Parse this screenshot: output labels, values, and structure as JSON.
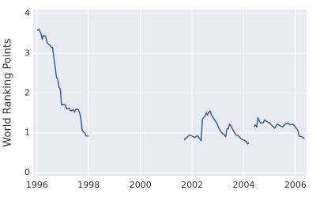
{
  "chart_data": {
    "type": "line",
    "ylabel": "World Ranking Points",
    "x": [
      1996.0,
      1996.08,
      1996.15,
      1996.2,
      1996.25,
      1996.33,
      1996.4,
      1996.5,
      1996.55,
      1996.6,
      1996.65,
      1996.7,
      1996.75,
      1996.8,
      1996.85,
      1996.9,
      1996.95,
      1997.0,
      1997.1,
      1997.15,
      1997.25,
      1997.3,
      1997.4,
      1997.45,
      1997.5,
      1997.6,
      1997.65,
      1997.7,
      1997.75,
      1997.85,
      1997.9,
      1998.0,
      1999.0,
      2001.7,
      2001.75,
      2001.8,
      2001.9,
      2002.0,
      2002.1,
      2002.2,
      2002.3,
      2002.35,
      2002.4,
      2002.5,
      2002.55,
      2002.6,
      2002.65,
      2002.7,
      2002.75,
      2002.85,
      2002.95,
      2003.05,
      2003.15,
      2003.25,
      2003.3,
      2003.35,
      2003.4,
      2003.45,
      2003.5,
      2003.6,
      2003.7,
      2003.8,
      2003.9,
      2004.0,
      2004.1,
      2004.15,
      2004.2,
      2004.3,
      2004.4,
      2004.45,
      2004.5,
      2004.55,
      2004.6,
      2004.65,
      2004.75,
      2004.8,
      2004.9,
      2005.0,
      2005.1,
      2005.2,
      2005.3,
      2005.4,
      2005.5,
      2005.6,
      2005.7,
      2005.8,
      2005.9,
      2006.0,
      2006.1,
      2006.15,
      2006.25,
      2006.3,
      2006.35
    ],
    "values": [
      3.58,
      3.6,
      3.5,
      3.35,
      3.45,
      3.42,
      3.25,
      3.2,
      3.15,
      3.15,
      2.9,
      2.65,
      2.4,
      2.35,
      2.15,
      2.1,
      1.7,
      1.72,
      1.7,
      1.6,
      1.62,
      1.55,
      1.58,
      1.52,
      1.6,
      1.58,
      1.5,
      1.35,
      1.05,
      1.0,
      0.92,
      0.92,
      null,
      0.82,
      0.87,
      0.88,
      0.95,
      0.92,
      0.88,
      0.93,
      0.85,
      0.8,
      1.35,
      1.42,
      1.5,
      1.45,
      1.52,
      1.55,
      1.45,
      1.35,
      1.25,
      1.1,
      1.0,
      0.95,
      0.9,
      1.1,
      1.1,
      1.22,
      1.18,
      1.05,
      0.95,
      0.92,
      0.85,
      0.82,
      0.78,
      0.72,
      0.75,
      null,
      1.15,
      1.2,
      1.15,
      1.38,
      1.3,
      1.25,
      1.25,
      1.32,
      1.28,
      1.25,
      1.18,
      1.12,
      1.22,
      1.18,
      1.15,
      1.22,
      1.25,
      1.2,
      1.22,
      1.15,
      1.05,
      0.92,
      0.9,
      0.88,
      0.85
    ],
    "color": "#3c5d91",
    "xlim": [
      1995.85,
      2006.43
    ],
    "xticks": [
      1996,
      1998,
      2000,
      2002,
      2004,
      2006
    ],
    "ylim": [
      -0.08,
      4.1
    ],
    "yticks": [
      0,
      1,
      2,
      3,
      4
    ],
    "grid": true
  }
}
